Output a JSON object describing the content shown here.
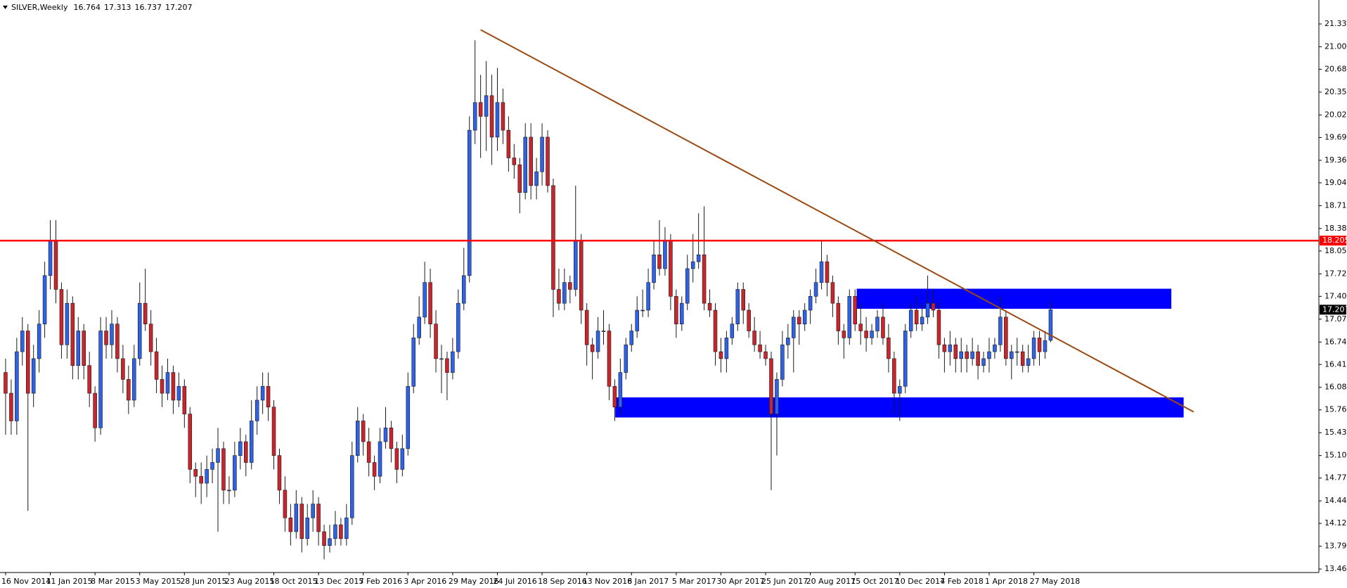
{
  "chart_data": {
    "type": "candlestick",
    "title": "SILVER,Weekly",
    "up_color": "#2f62e6",
    "down_color": "#c8262c",
    "outline_color": "#1a1a1a",
    "xlim": [
      -1,
      235
    ],
    "ylim": [
      13.41,
      21.62
    ],
    "yticks": [
      21.335,
      21.005,
      {
        "value": 20.68,
        "label": "20.680"
      },
      {
        "value": 20.35,
        "label": "20.350"
      },
      {
        "value": 20.02,
        "label": "20.020"
      },
      19.695,
      19.365,
      {
        "value": 19.04,
        "label": "19.040"
      },
      {
        "value": 18.71,
        "label": "18.710"
      },
      {
        "value": 18.38,
        "label": "18.380"
      },
      18.055,
      17.725,
      {
        "value": 17.4,
        "label": "17.400"
      },
      {
        "value": 17.07,
        "label": "17.070"
      },
      {
        "value": 16.74,
        "label": "16.740"
      },
      16.415,
      16.085,
      {
        "value": 15.76,
        "label": "15.760"
      },
      {
        "value": 15.43,
        "label": "15.430"
      },
      {
        "value": 15.1,
        "label": "15.100"
      },
      14.775,
      14.445,
      {
        "value": 14.12,
        "label": "14.120"
      },
      {
        "value": 13.79,
        "label": "13.790"
      },
      {
        "value": 13.46,
        "label": "13.460"
      }
    ],
    "xticks": [
      {
        "value": 0,
        "label": "16 Nov 2014"
      },
      {
        "value": 8,
        "label": "11 Jan 2015"
      },
      {
        "value": 16,
        "label": "8 Mar 2015"
      },
      {
        "value": 24,
        "label": "3 May 2015"
      },
      {
        "value": 32,
        "label": "28 Jun 2015"
      },
      {
        "value": 40,
        "label": "23 Aug 2015"
      },
      {
        "value": 48,
        "label": "18 Oct 2015"
      },
      {
        "value": 56,
        "label": "13 Dec 2015"
      },
      {
        "value": 64,
        "label": "7 Feb 2016"
      },
      {
        "value": 72,
        "label": "3 Apr 2016"
      },
      {
        "value": 80,
        "label": "29 May 2016"
      },
      {
        "value": 88,
        "label": "24 Jul 2016"
      },
      {
        "value": 96,
        "label": "18 Sep 2016"
      },
      {
        "value": 104,
        "label": "13 Nov 2016"
      },
      {
        "value": 112,
        "label": "8 Jan 2017"
      },
      {
        "value": 120,
        "label": "5 Mar 2017"
      },
      {
        "value": 128,
        "label": "30 Apr 2017"
      },
      {
        "value": 136,
        "label": "25 Jun 2017"
      },
      {
        "value": 144,
        "label": "20 Aug 2017"
      },
      {
        "value": 152,
        "label": "15 Oct 2017"
      },
      {
        "value": 160,
        "label": "10 Dec 2017"
      },
      {
        "value": 168,
        "label": "4 Feb 2018"
      },
      {
        "value": 176,
        "label": "1 Apr 2018"
      },
      {
        "value": 184,
        "label": "27 May 2018"
      }
    ],
    "hlines": [
      {
        "value": 18.205,
        "color": "#ff0000"
      }
    ],
    "trendlines": [
      {
        "x": [
          85,
          212.6
        ],
        "y": [
          21.25,
          15.73
        ],
        "color": "#9a4a12"
      }
    ],
    "zones": [
      {
        "x": [
          152.3,
          208.6
        ],
        "y": [
          17.22,
          17.51
        ],
        "color": "#0000ff"
      },
      {
        "x": [
          109.1,
          210.8
        ],
        "y": [
          15.65,
          15.94
        ],
        "color": "#0000ff"
      }
    ],
    "candles": [
      [
        16.3,
        16.5,
        15.4,
        16.0
      ],
      [
        16.0,
        16.2,
        15.4,
        15.6
      ],
      [
        15.6,
        16.8,
        15.4,
        16.6
      ],
      [
        16.6,
        17.1,
        16.4,
        16.9
      ],
      [
        16.9,
        17.0,
        14.3,
        16.0
      ],
      [
        16.0,
        16.7,
        15.8,
        16.5
      ],
      [
        16.5,
        17.2,
        16.3,
        17.0
      ],
      [
        17.0,
        17.9,
        16.8,
        17.7
      ],
      [
        17.7,
        18.5,
        17.5,
        18.2
      ],
      [
        18.2,
        18.5,
        17.3,
        17.5
      ],
      [
        17.5,
        17.6,
        16.5,
        16.7
      ],
      [
        16.7,
        17.5,
        16.5,
        17.3
      ],
      [
        17.3,
        17.4,
        16.2,
        16.4
      ],
      [
        16.4,
        17.1,
        16.2,
        16.9
      ],
      [
        16.9,
        17.0,
        16.2,
        16.4
      ],
      [
        16.4,
        16.6,
        15.8,
        16.0
      ],
      [
        16.0,
        16.1,
        15.3,
        15.5
      ],
      [
        15.5,
        17.1,
        15.4,
        16.9
      ],
      [
        16.9,
        17.1,
        16.5,
        16.7
      ],
      [
        16.7,
        17.2,
        16.5,
        17.0
      ],
      [
        17.0,
        17.1,
        16.3,
        16.5
      ],
      [
        16.5,
        16.7,
        16.0,
        16.2
      ],
      [
        16.2,
        16.4,
        15.7,
        15.9
      ],
      [
        15.9,
        16.7,
        15.8,
        16.5
      ],
      [
        16.5,
        17.6,
        16.4,
        17.3
      ],
      [
        17.3,
        17.8,
        16.9,
        17.0
      ],
      [
        17.0,
        17.2,
        16.4,
        16.6
      ],
      [
        16.6,
        16.8,
        16.0,
        16.2
      ],
      [
        16.2,
        16.4,
        15.8,
        16.0
      ],
      [
        16.0,
        16.5,
        15.9,
        16.3
      ],
      [
        16.3,
        16.4,
        15.7,
        15.9
      ],
      [
        15.9,
        16.3,
        15.8,
        16.1
      ],
      [
        16.1,
        16.2,
        15.5,
        15.7
      ],
      [
        15.7,
        15.8,
        14.7,
        14.9
      ],
      [
        14.9,
        15.0,
        14.5,
        14.8
      ],
      [
        14.8,
        15.0,
        14.4,
        14.7
      ],
      [
        14.7,
        15.1,
        14.5,
        14.9
      ],
      [
        14.9,
        15.2,
        14.7,
        15.0
      ],
      [
        15.0,
        15.5,
        14.0,
        15.2
      ],
      [
        15.2,
        15.3,
        14.4,
        14.6
      ],
      [
        14.6,
        14.8,
        14.4,
        14.6
      ],
      [
        14.6,
        15.3,
        14.5,
        15.1
      ],
      [
        15.1,
        15.5,
        14.9,
        15.3
      ],
      [
        15.3,
        15.4,
        14.8,
        15.0
      ],
      [
        15.0,
        15.9,
        14.9,
        15.6
      ],
      [
        15.6,
        16.1,
        15.4,
        15.9
      ],
      [
        15.9,
        16.3,
        15.7,
        16.1
      ],
      [
        16.1,
        16.3,
        15.6,
        15.8
      ],
      [
        15.8,
        15.9,
        14.9,
        15.1
      ],
      [
        15.1,
        15.2,
        14.4,
        14.6
      ],
      [
        14.6,
        14.8,
        14.0,
        14.2
      ],
      [
        14.2,
        14.4,
        13.8,
        14.0
      ],
      [
        14.0,
        14.6,
        13.9,
        14.4
      ],
      [
        14.4,
        14.5,
        13.7,
        13.9
      ],
      [
        13.9,
        14.4,
        13.8,
        14.2
      ],
      [
        14.2,
        14.6,
        14.0,
        14.4
      ],
      [
        14.4,
        14.5,
        13.8,
        14.0
      ],
      [
        14.0,
        14.1,
        13.6,
        13.8
      ],
      [
        13.8,
        14.1,
        13.7,
        13.9
      ],
      [
        13.9,
        14.3,
        13.8,
        14.1
      ],
      [
        14.1,
        14.2,
        13.8,
        13.9
      ],
      [
        13.9,
        14.4,
        13.8,
        14.2
      ],
      [
        14.2,
        15.3,
        14.1,
        15.1
      ],
      [
        15.1,
        15.8,
        15.0,
        15.6
      ],
      [
        15.6,
        15.7,
        15.1,
        15.3
      ],
      [
        15.3,
        15.5,
        14.8,
        15.0
      ],
      [
        15.0,
        15.1,
        14.6,
        14.8
      ],
      [
        14.8,
        15.5,
        14.7,
        15.3
      ],
      [
        15.3,
        15.8,
        15.2,
        15.5
      ],
      [
        15.5,
        15.6,
        15.0,
        15.2
      ],
      [
        15.2,
        15.3,
        14.7,
        14.9
      ],
      [
        14.9,
        15.4,
        14.8,
        15.2
      ],
      [
        15.2,
        16.3,
        15.1,
        16.1
      ],
      [
        16.1,
        17.0,
        16.0,
        16.8
      ],
      [
        16.8,
        17.4,
        16.7,
        17.1
      ],
      [
        17.1,
        17.9,
        17.0,
        17.6
      ],
      [
        17.6,
        17.8,
        16.8,
        17.0
      ],
      [
        17.0,
        17.2,
        16.3,
        16.5
      ],
      [
        16.5,
        16.7,
        16.0,
        16.5
      ],
      [
        16.5,
        16.6,
        15.9,
        16.3
      ],
      [
        16.3,
        16.8,
        16.2,
        16.6
      ],
      [
        16.6,
        17.5,
        16.5,
        17.3
      ],
      [
        17.3,
        18.1,
        17.2,
        17.7
      ],
      [
        17.7,
        20.0,
        17.6,
        19.8
      ],
      [
        19.8,
        21.1,
        19.6,
        20.2
      ],
      [
        20.2,
        20.6,
        19.4,
        20.0
      ],
      [
        20.0,
        20.8,
        19.5,
        20.3
      ],
      [
        20.3,
        20.6,
        19.3,
        19.7
      ],
      [
        19.7,
        20.7,
        19.5,
        20.2
      ],
      [
        20.2,
        20.4,
        19.6,
        19.8
      ],
      [
        19.8,
        20.0,
        19.2,
        19.4
      ],
      [
        19.4,
        19.6,
        19.1,
        19.3
      ],
      [
        19.3,
        19.4,
        18.6,
        18.9
      ],
      [
        18.9,
        19.9,
        18.8,
        19.7
      ],
      [
        19.7,
        19.9,
        18.8,
        19.0
      ],
      [
        19.0,
        19.4,
        18.8,
        19.2
      ],
      [
        19.2,
        19.9,
        19.0,
        19.7
      ],
      [
        19.7,
        19.8,
        18.9,
        19.0
      ],
      [
        19.0,
        19.1,
        17.1,
        17.5
      ],
      [
        17.5,
        17.8,
        17.2,
        17.3
      ],
      [
        17.3,
        17.8,
        17.2,
        17.6
      ],
      [
        17.6,
        17.7,
        17.3,
        17.5
      ],
      [
        17.5,
        19.0,
        17.4,
        18.2
      ],
      [
        18.2,
        18.3,
        17.0,
        17.2
      ],
      [
        17.2,
        17.3,
        16.4,
        16.7
      ],
      [
        16.7,
        16.8,
        16.2,
        16.6
      ],
      [
        16.6,
        17.1,
        16.5,
        16.9
      ],
      [
        16.9,
        17.2,
        16.7,
        16.9
      ],
      [
        16.9,
        17.0,
        15.9,
        16.1
      ],
      [
        16.1,
        16.2,
        15.6,
        15.8
      ],
      [
        15.8,
        16.5,
        15.7,
        16.3
      ],
      [
        16.3,
        16.8,
        16.2,
        16.7
      ],
      [
        16.7,
        17.0,
        16.6,
        16.9
      ],
      [
        16.9,
        17.4,
        16.8,
        17.2
      ],
      [
        17.2,
        17.5,
        17.1,
        17.2
      ],
      [
        17.2,
        17.8,
        17.1,
        17.6
      ],
      [
        17.6,
        18.2,
        17.5,
        18.0
      ],
      [
        18.0,
        18.5,
        17.7,
        17.8
      ],
      [
        17.8,
        18.4,
        17.7,
        18.2
      ],
      [
        18.2,
        18.3,
        17.2,
        17.4
      ],
      [
        17.4,
        17.5,
        16.8,
        17.0
      ],
      [
        17.0,
        17.4,
        16.9,
        17.3
      ],
      [
        17.3,
        18.0,
        17.2,
        17.8
      ],
      [
        17.8,
        18.3,
        17.6,
        17.9
      ],
      [
        17.9,
        18.6,
        17.8,
        18.0
      ],
      [
        18.0,
        18.7,
        17.2,
        17.3
      ],
      [
        17.3,
        17.5,
        17.1,
        17.2
      ],
      [
        17.2,
        17.3,
        16.4,
        16.6
      ],
      [
        16.6,
        16.8,
        16.3,
        16.5
      ],
      [
        16.5,
        16.9,
        16.3,
        16.8
      ],
      [
        16.8,
        17.1,
        16.7,
        17.0
      ],
      [
        17.0,
        17.6,
        16.9,
        17.5
      ],
      [
        17.5,
        17.6,
        17.0,
        17.2
      ],
      [
        17.2,
        17.3,
        16.8,
        16.9
      ],
      [
        16.9,
        17.1,
        16.6,
        16.7
      ],
      [
        16.7,
        16.9,
        16.5,
        16.6
      ],
      [
        16.6,
        16.7,
        16.4,
        16.5
      ],
      [
        16.5,
        16.6,
        14.6,
        15.7
      ],
      [
        15.7,
        16.3,
        15.1,
        16.2
      ],
      [
        16.2,
        16.9,
        16.1,
        16.7
      ],
      [
        16.7,
        17.0,
        16.5,
        16.8
      ],
      [
        16.8,
        17.2,
        16.3,
        17.1
      ],
      [
        17.1,
        17.2,
        16.7,
        17.0
      ],
      [
        17.0,
        17.3,
        16.9,
        17.2
      ],
      [
        17.2,
        17.5,
        17.0,
        17.4
      ],
      [
        17.4,
        17.8,
        17.3,
        17.6
      ],
      [
        17.6,
        18.2,
        17.5,
        17.9
      ],
      [
        17.9,
        18.0,
        17.4,
        17.6
      ],
      [
        17.6,
        17.7,
        17.1,
        17.3
      ],
      [
        17.3,
        17.4,
        16.7,
        16.9
      ],
      [
        16.9,
        17.0,
        16.5,
        16.8
      ],
      [
        16.8,
        17.5,
        16.7,
        17.4
      ],
      [
        17.4,
        17.5,
        16.9,
        17.0
      ],
      [
        17.0,
        17.3,
        16.7,
        16.9
      ],
      [
        16.9,
        17.1,
        16.6,
        16.8
      ],
      [
        16.8,
        17.0,
        16.7,
        16.9
      ],
      [
        16.9,
        17.2,
        16.8,
        17.1
      ],
      [
        17.1,
        17.3,
        16.7,
        16.8
      ],
      [
        16.8,
        17.0,
        16.3,
        16.5
      ],
      [
        16.5,
        16.6,
        15.7,
        16.0
      ],
      [
        16.0,
        16.2,
        15.6,
        16.1
      ],
      [
        16.1,
        17.0,
        16.0,
        16.9
      ],
      [
        16.9,
        17.3,
        16.8,
        17.2
      ],
      [
        17.2,
        17.4,
        16.9,
        17.0
      ],
      [
        17.0,
        17.3,
        16.9,
        17.1
      ],
      [
        17.1,
        17.7,
        17.0,
        17.3
      ],
      [
        17.3,
        17.5,
        17.1,
        17.2
      ],
      [
        17.2,
        17.3,
        16.5,
        16.7
      ],
      [
        16.7,
        16.8,
        16.3,
        16.6
      ],
      [
        16.6,
        16.9,
        16.4,
        16.7
      ],
      [
        16.7,
        16.8,
        16.3,
        16.5
      ],
      [
        16.5,
        16.8,
        16.3,
        16.6
      ],
      [
        16.6,
        16.7,
        16.3,
        16.5
      ],
      [
        16.5,
        16.8,
        16.4,
        16.6
      ],
      [
        16.6,
        16.7,
        16.2,
        16.4
      ],
      [
        16.4,
        16.6,
        16.3,
        16.5
      ],
      [
        16.5,
        16.8,
        16.3,
        16.6
      ],
      [
        16.6,
        16.8,
        16.5,
        16.7
      ],
      [
        16.7,
        17.4,
        16.6,
        17.1
      ],
      [
        17.1,
        17.2,
        16.4,
        16.5
      ],
      [
        16.5,
        16.7,
        16.2,
        16.6
      ],
      [
        16.6,
        16.8,
        16.4,
        16.6
      ],
      [
        16.6,
        16.7,
        16.3,
        16.4
      ],
      [
        16.4,
        16.7,
        16.3,
        16.5
      ],
      [
        16.5,
        16.9,
        16.4,
        16.8
      ],
      [
        16.8,
        16.9,
        16.4,
        16.6
      ],
      [
        16.6,
        16.9,
        16.5,
        16.76
      ],
      [
        16.764,
        17.313,
        16.737,
        17.207
      ]
    ]
  }
}
